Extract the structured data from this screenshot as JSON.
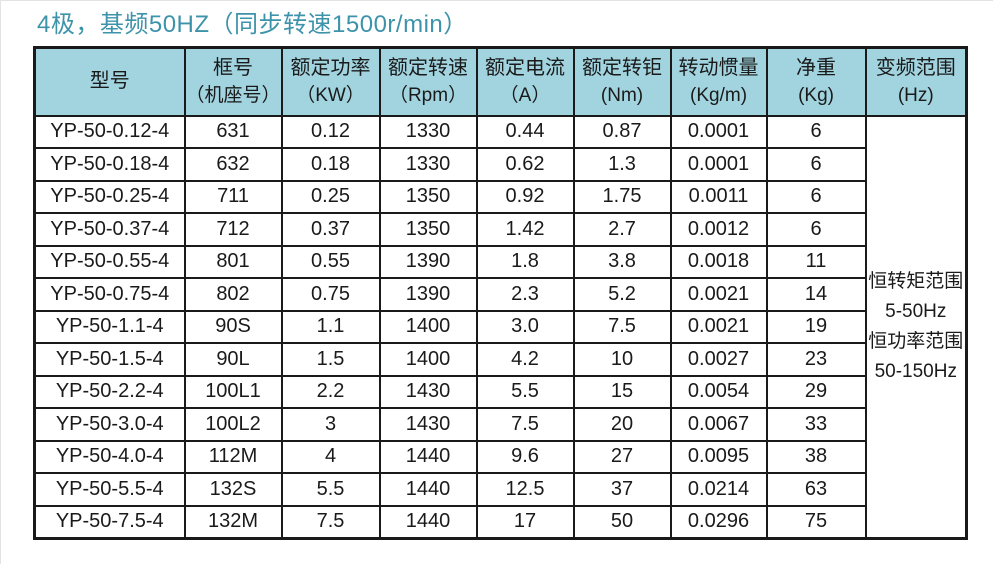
{
  "title": "4极，基频50HZ（同步转速1500r/min）",
  "colors": {
    "title": "#3d93aa",
    "header_bg": "#a2d4e0",
    "border": "#1a1a1a"
  },
  "table": {
    "headers": [
      {
        "line1": "型号",
        "line2": ""
      },
      {
        "line1": "框号",
        "line2": "（机座号）"
      },
      {
        "line1": "额定功率",
        "line2": "（KW）"
      },
      {
        "line1": "额定转速",
        "line2": "（Rpm）"
      },
      {
        "line1": "额定电流",
        "line2": "（A）"
      },
      {
        "line1": "额定转钜",
        "line2": "(Nm)"
      },
      {
        "line1": "转动惯量",
        "line2": "(Kg/m)"
      },
      {
        "line1": "净重",
        "line2": "(Kg)"
      },
      {
        "line1": "变频范围",
        "line2": "(Hz)"
      }
    ],
    "rows": [
      [
        "YP-50-0.12-4",
        "631",
        "0.12",
        "1330",
        "0.44",
        "0.87",
        "0.0001",
        "6"
      ],
      [
        "YP-50-0.18-4",
        "632",
        "0.18",
        "1330",
        "0.62",
        "1.3",
        "0.0001",
        "6"
      ],
      [
        "YP-50-0.25-4",
        "711",
        "0.25",
        "1350",
        "0.92",
        "1.75",
        "0.0011",
        "6"
      ],
      [
        "YP-50-0.37-4",
        "712",
        "0.37",
        "1350",
        "1.42",
        "2.7",
        "0.0012",
        "6"
      ],
      [
        "YP-50-0.55-4",
        "801",
        "0.55",
        "1390",
        "1.8",
        "3.8",
        "0.0018",
        "11"
      ],
      [
        "YP-50-0.75-4",
        "802",
        "0.75",
        "1390",
        "2.3",
        "5.2",
        "0.0021",
        "14"
      ],
      [
        "YP-50-1.1-4",
        "90S",
        "1.1",
        "1400",
        "3.0",
        "7.5",
        "0.0021",
        "19"
      ],
      [
        "YP-50-1.5-4",
        "90L",
        "1.5",
        "1400",
        "4.2",
        "10",
        "0.0027",
        "23"
      ],
      [
        "YP-50-2.2-4",
        "100L1",
        "2.2",
        "1430",
        "5.5",
        "15",
        "0.0054",
        "29"
      ],
      [
        "YP-50-3.0-4",
        "100L2",
        "3",
        "1430",
        "7.5",
        "20",
        "0.0067",
        "33"
      ],
      [
        "YP-50-4.0-4",
        "112M",
        "4",
        "1440",
        "9.6",
        "27",
        "0.0095",
        "38"
      ],
      [
        "YP-50-5.5-4",
        "132S",
        "5.5",
        "1440",
        "12.5",
        "37",
        "0.0214",
        "63"
      ],
      [
        "YP-50-7.5-4",
        "132M",
        "7.5",
        "1440",
        "17",
        "50",
        "0.0296",
        "75"
      ]
    ],
    "merged_cell": {
      "lines": [
        "恒转矩范围",
        "5-50Hz",
        "恒功率范围",
        "50-150Hz"
      ]
    }
  }
}
